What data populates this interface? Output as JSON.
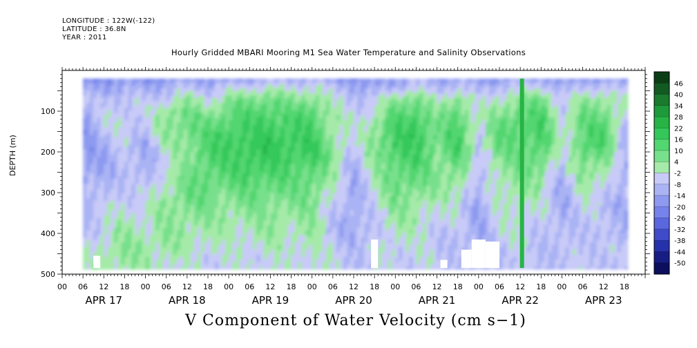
{
  "header": {
    "longitude": "LONGITUDE : 122W(-122)",
    "latitude": "LATITUDE : 36.8N",
    "year": "YEAR : 2011",
    "title": "Hourly Gridded MBARI Mooring M1 Sea Water Temperature and Salinity Observations",
    "bottom_title": "V Component of Water Velocity (cm s−1)"
  },
  "chart_data": {
    "type": "heatmap",
    "title": "Hourly Gridded MBARI Mooring M1 Sea Water Temperature and Salinity Observations",
    "xlabel": "",
    "ylabel": "DEPTH (m)",
    "variable": "V Component of Water Velocity (cm s−1)",
    "x_hour_ticks": [
      "00",
      "06",
      "12",
      "18",
      "00",
      "06",
      "12",
      "18",
      "00",
      "06",
      "12",
      "18",
      "00",
      "06",
      "12",
      "18",
      "00",
      "06",
      "12",
      "18",
      "00",
      "06",
      "12",
      "18",
      "00",
      "06",
      "12",
      "18"
    ],
    "x_day_labels": [
      "APR 17",
      "APR 18",
      "APR 19",
      "APR 20",
      "APR 21",
      "APR 22",
      "APR 23"
    ],
    "xlim_hours": [
      0,
      168
    ],
    "data_xlim_hours": [
      6,
      163
    ],
    "y_tick_labels": [
      "100",
      "200",
      "300",
      "400",
      "500"
    ],
    "ylim": [
      500,
      0
    ],
    "data_ylim": [
      20,
      485
    ],
    "colorbar_levels": [
      "46",
      "40",
      "34",
      "28",
      "22",
      "16",
      "10",
      "4",
      "-2",
      "-8",
      "-14",
      "-20",
      "-26",
      "-32",
      "-38",
      "-44",
      "-50"
    ],
    "colorbar_colors": [
      "#0b3d14",
      "#125a22",
      "#1a7a2e",
      "#1f9a3b",
      "#27b445",
      "#34c85a",
      "#52d670",
      "#78e08c",
      "#a5eaa8",
      "#c8caf7",
      "#aab3f4",
      "#8d9af0",
      "#7683ea",
      "#5a67de",
      "#3f4bc8",
      "#2632aa",
      "#161e84",
      "#0b0f5c"
    ],
    "grid": false,
    "legend_position": "right (colorbar)",
    "field_v_cm_s": {
      "depth_m": [
        20,
        40,
        70,
        100,
        130,
        160,
        190,
        220,
        250,
        280,
        310,
        340,
        370,
        400,
        430,
        460,
        485
      ],
      "hour": [
        6,
        12,
        18,
        24,
        30,
        36,
        42,
        48,
        54,
        60,
        66,
        72,
        78,
        84,
        90,
        96,
        102,
        108,
        114,
        120,
        126,
        132,
        138,
        144,
        150,
        156,
        162
      ],
      "values": [
        [
          -22,
          -18,
          -16,
          -20,
          -18,
          -14,
          -16,
          -18,
          -14,
          -12,
          -12,
          -10,
          -16,
          -18,
          -20,
          -14,
          -10,
          -16,
          -12,
          -18,
          -16,
          -14,
          -12,
          -20,
          -16,
          -14,
          -18
        ],
        [
          -16,
          -14,
          -12,
          -14,
          -10,
          -8,
          -10,
          -6,
          -4,
          -2,
          -4,
          -2,
          -8,
          -12,
          -14,
          -10,
          -6,
          -10,
          -6,
          -12,
          -8,
          -6,
          -4,
          -12,
          -8,
          -6,
          -10
        ],
        [
          -10,
          -8,
          -6,
          -8,
          -4,
          2,
          -4,
          4,
          6,
          8,
          4,
          6,
          -2,
          -8,
          -6,
          4,
          8,
          -4,
          6,
          -6,
          0,
          4,
          8,
          -6,
          2,
          4,
          -4
        ],
        [
          -12,
          -6,
          -4,
          -6,
          4,
          8,
          2,
          10,
          12,
          14,
          10,
          12,
          0,
          -6,
          -2,
          10,
          14,
          2,
          10,
          -4,
          4,
          10,
          12,
          -4,
          6,
          8,
          -2
        ],
        [
          -14,
          -6,
          -2,
          -8,
          6,
          10,
          8,
          14,
          14,
          16,
          14,
          14,
          2,
          -4,
          4,
          14,
          16,
          6,
          12,
          -2,
          8,
          12,
          14,
          -2,
          10,
          12,
          -6
        ],
        [
          -16,
          -10,
          -4,
          -10,
          2,
          8,
          12,
          16,
          16,
          18,
          16,
          16,
          4,
          -6,
          6,
          16,
          18,
          8,
          14,
          -4,
          10,
          12,
          16,
          -4,
          12,
          14,
          -8
        ],
        [
          -18,
          -12,
          -6,
          -12,
          -2,
          6,
          14,
          16,
          18,
          18,
          18,
          18,
          6,
          -8,
          6,
          16,
          16,
          8,
          14,
          -6,
          10,
          10,
          14,
          -6,
          12,
          12,
          -10
        ],
        [
          -16,
          -14,
          -8,
          -12,
          -4,
          4,
          14,
          14,
          18,
          16,
          16,
          16,
          4,
          -10,
          4,
          12,
          14,
          6,
          12,
          -8,
          6,
          8,
          10,
          -8,
          10,
          6,
          -12
        ],
        [
          -14,
          -12,
          -8,
          -10,
          -2,
          6,
          12,
          12,
          16,
          14,
          12,
          12,
          2,
          -12,
          2,
          10,
          12,
          4,
          8,
          -10,
          4,
          6,
          6,
          -10,
          6,
          2,
          -12
        ],
        [
          -12,
          -10,
          -6,
          -8,
          0,
          8,
          10,
          10,
          12,
          10,
          10,
          10,
          -2,
          -12,
          0,
          8,
          10,
          2,
          4,
          -12,
          2,
          4,
          2,
          -12,
          2,
          -2,
          -12
        ],
        [
          -10,
          -8,
          -4,
          -6,
          2,
          8,
          8,
          6,
          8,
          8,
          6,
          8,
          -4,
          -14,
          -2,
          6,
          6,
          0,
          0,
          -12,
          0,
          2,
          -2,
          -12,
          -2,
          -6,
          -12
        ],
        [
          -10,
          -6,
          -2,
          -4,
          4,
          6,
          6,
          4,
          4,
          6,
          4,
          6,
          -6,
          -14,
          -4,
          4,
          2,
          -2,
          -4,
          -14,
          -2,
          0,
          -4,
          -12,
          -4,
          -8,
          -12
        ],
        [
          -8,
          -4,
          0,
          -2,
          4,
          4,
          2,
          2,
          2,
          4,
          2,
          4,
          -8,
          -14,
          -6,
          2,
          0,
          -4,
          -6,
          -14,
          -4,
          -2,
          -6,
          -10,
          -6,
          -8,
          -10
        ],
        [
          -8,
          -2,
          2,
          0,
          4,
          2,
          0,
          0,
          0,
          2,
          0,
          2,
          -8,
          -12,
          -8,
          0,
          -2,
          -6,
          -8,
          -12,
          -4,
          -4,
          -6,
          -10,
          -6,
          -8,
          -10
        ],
        [
          -6,
          0,
          4,
          2,
          2,
          0,
          -2,
          -2,
          -2,
          0,
          -2,
          0,
          -6,
          -10,
          -6,
          -2,
          -4,
          -6,
          -8,
          -12,
          -6,
          -4,
          -8,
          -8,
          -6,
          -6,
          -8
        ],
        [
          -4,
          2,
          4,
          2,
          0,
          -2,
          -4,
          -4,
          -4,
          -2,
          -4,
          -2,
          -4,
          -8,
          -6,
          -4,
          -4,
          -6,
          -8,
          -10,
          -6,
          -6,
          -8,
          -8,
          -6,
          -6,
          -8
        ],
        [
          -4,
          2,
          2,
          0,
          -2,
          -4,
          -4,
          -4,
          -4,
          -2,
          -4,
          -2,
          -4,
          -8,
          -6,
          -4,
          -4,
          -6,
          -8,
          -10,
          -6,
          -6,
          -8,
          -8,
          -6,
          -6,
          -8
        ]
      ],
      "vertical_streak_hours": [
        132.5
      ],
      "vertical_streak_value": 22,
      "missing_data_patches": [
        {
          "hour": [
            9,
            11
          ],
          "depth_m": [
            455,
            485
          ]
        },
        {
          "hour": [
            89,
            91
          ],
          "depth_m": [
            415,
            485
          ]
        },
        {
          "hour": [
            109,
            111
          ],
          "depth_m": [
            465,
            485
          ]
        },
        {
          "hour": [
            115,
            118
          ],
          "depth_m": [
            440,
            485
          ]
        },
        {
          "hour": [
            118,
            122
          ],
          "depth_m": [
            415,
            485
          ]
        },
        {
          "hour": [
            122,
            126
          ],
          "depth_m": [
            420,
            485
          ]
        }
      ]
    }
  }
}
